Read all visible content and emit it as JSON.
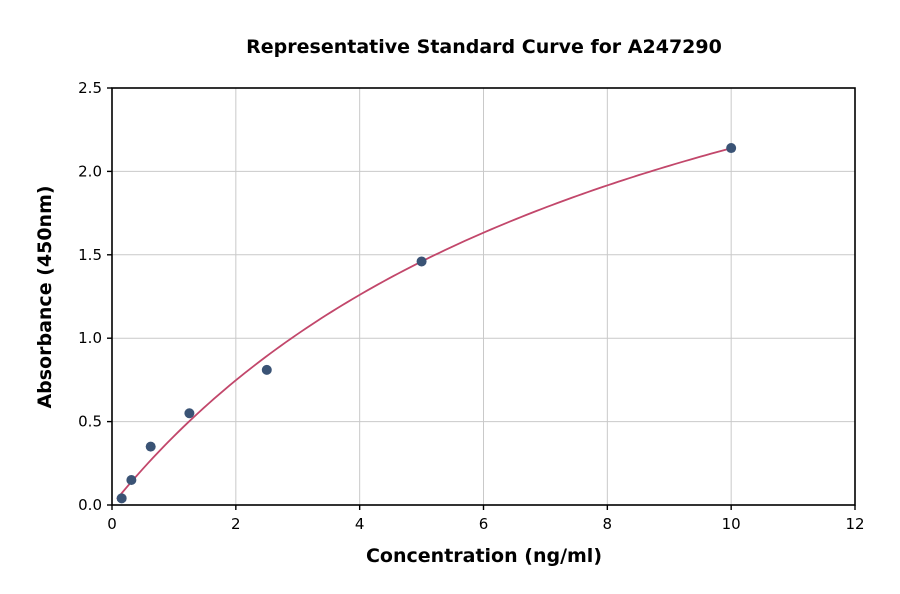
{
  "chart_data": {
    "type": "scatter",
    "title": "Representative Standard Curve for A247290",
    "xlabel": "Concentration (ng/ml)",
    "ylabel": "Absorbance (450nm)",
    "xlim": [
      0,
      12
    ],
    "ylim": [
      0,
      2.5
    ],
    "x_ticks": [
      0,
      2,
      4,
      6,
      8,
      10,
      12
    ],
    "y_ticks": [
      0.0,
      0.5,
      1.0,
      1.5,
      2.0,
      2.5
    ],
    "grid": true,
    "legend": "none",
    "points": [
      {
        "x": 0.156,
        "y": 0.04
      },
      {
        "x": 0.313,
        "y": 0.15
      },
      {
        "x": 0.625,
        "y": 0.35
      },
      {
        "x": 1.25,
        "y": 0.55
      },
      {
        "x": 2.5,
        "y": 0.81
      },
      {
        "x": 5,
        "y": 1.46
      },
      {
        "x": 10,
        "y": 2.14
      }
    ],
    "fit_curve": {
      "type": "hyperbolic",
      "vmax": 4.0,
      "k": 8.7,
      "x_start": 0.08,
      "x_end": 10
    },
    "colors": {
      "point": "#3a5375",
      "curve": "#c2476b",
      "grid": "#c9c9c9",
      "axis": "#000000",
      "background": "#ffffff"
    }
  }
}
